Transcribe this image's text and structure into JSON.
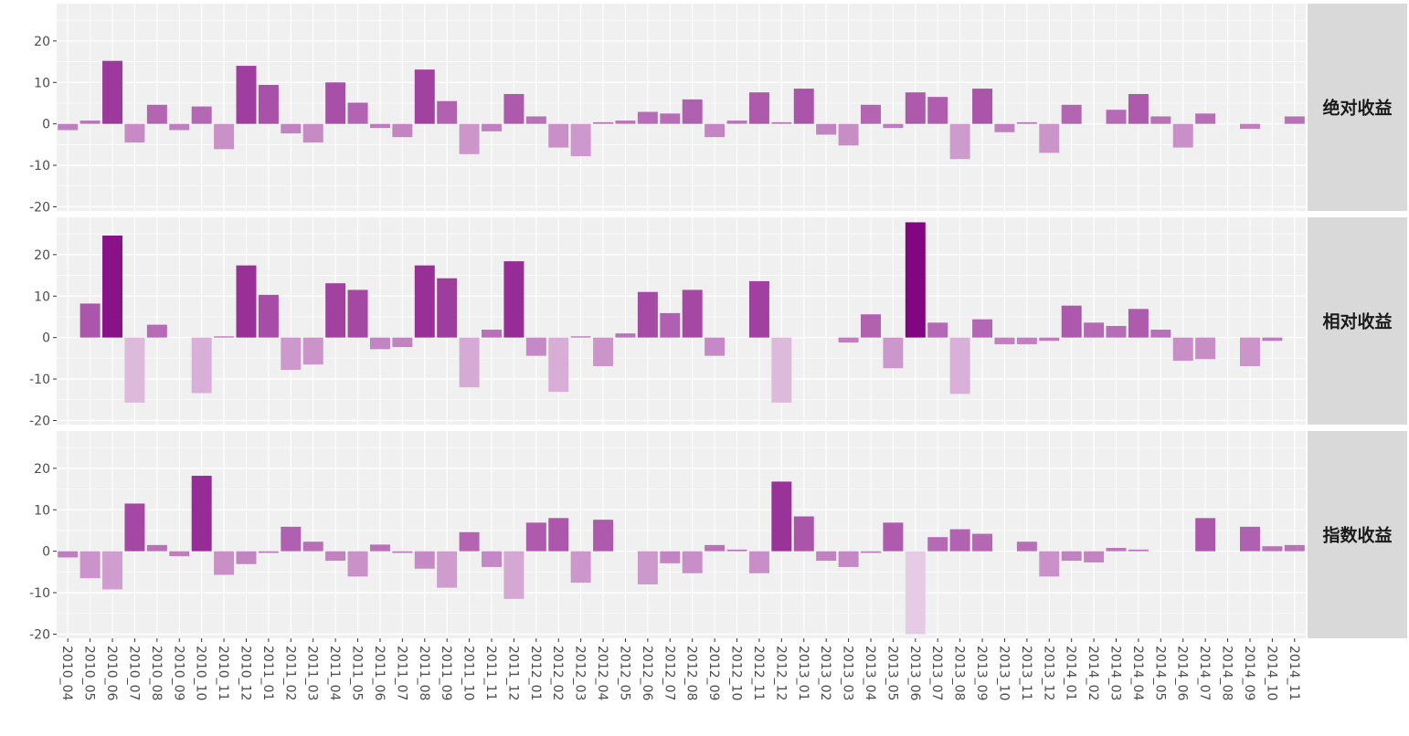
{
  "chart_data": {
    "type": "bar",
    "layout": "faceted-rows",
    "grid": true,
    "legend": "none",
    "colors": {
      "panel_bg": "#f0f0f0",
      "grid": "#ffffff",
      "strip_bg": "#d9d9d9",
      "bar_low": "#e8cfe7",
      "bar_high": "#800080",
      "axis_text": "#4d4d4d"
    },
    "ylim": [
      -21,
      29
    ],
    "yticks": [
      -20,
      -10,
      0,
      10,
      20
    ],
    "categories": [
      "2010_04",
      "2010_05",
      "2010_06",
      "2010_07",
      "2010_08",
      "2010_09",
      "2010_10",
      "2010_11",
      "2010_12",
      "2011_01",
      "2011_02",
      "2011_03",
      "2011_04",
      "2011_05",
      "2011_06",
      "2011_07",
      "2011_08",
      "2011_09",
      "2011_10",
      "2011_11",
      "2011_12",
      "2012_01",
      "2012_02",
      "2012_03",
      "2012_04",
      "2012_05",
      "2012_06",
      "2012_07",
      "2012_08",
      "2012_09",
      "2012_10",
      "2012_11",
      "2012_12",
      "2013_01",
      "2013_02",
      "2013_03",
      "2013_04",
      "2013_05",
      "2013_06",
      "2013_07",
      "2013_08",
      "2013_09",
      "2013_10",
      "2013_11",
      "2013_12",
      "2014_01",
      "2014_02",
      "2014_03",
      "2014_04",
      "2014_05",
      "2014_06",
      "2014_07",
      "2014_08",
      "2014_09",
      "2014_10",
      "2014_11"
    ],
    "series": [
      {
        "name": "绝对收益",
        "values": [
          -1.5,
          0.8,
          15.2,
          -4.5,
          4.6,
          -1.5,
          4.2,
          -6.1,
          14.0,
          9.4,
          -2.3,
          -4.5,
          10.0,
          5.1,
          -1.0,
          -3.2,
          13.1,
          5.5,
          -7.3,
          -1.8,
          7.2,
          1.8,
          -5.7,
          -7.8,
          0.4,
          0.8,
          2.9,
          2.5,
          5.9,
          -3.2,
          0.8,
          7.6,
          0.4,
          8.5,
          -2.6,
          -5.2,
          4.6,
          -1.0,
          7.6,
          6.5,
          -8.5,
          8.5,
          -2.0,
          0.4,
          -7.0,
          4.6,
          0.0,
          3.4,
          7.2,
          1.8,
          -5.7,
          2.5,
          0.0,
          -1.2,
          0.0,
          1.8
        ]
      },
      {
        "name": "相对收益",
        "values": [
          0.0,
          8.2,
          24.6,
          -15.7,
          3.1,
          0.0,
          -13.4,
          0.3,
          17.4,
          10.3,
          -7.8,
          -6.5,
          13.1,
          11.5,
          -2.8,
          -2.3,
          17.4,
          14.3,
          -12.0,
          1.9,
          18.4,
          -4.4,
          -13.1,
          0.3,
          -6.9,
          1.0,
          11.0,
          5.9,
          11.5,
          -4.4,
          0.0,
          13.6,
          -15.7,
          0.0,
          0.0,
          -1.2,
          5.6,
          -7.4,
          27.8,
          3.6,
          -13.6,
          4.4,
          -1.6,
          -1.6,
          -0.8,
          7.7,
          3.6,
          2.8,
          6.9,
          1.9,
          -5.6,
          -5.2,
          0.0,
          -6.9,
          -0.8,
          0.0
        ]
      },
      {
        "name": "指数收益",
        "values": [
          -1.5,
          -6.5,
          -9.2,
          11.5,
          1.5,
          -1.2,
          18.2,
          -5.7,
          -3.1,
          -0.4,
          5.9,
          2.3,
          -2.3,
          -6.1,
          1.6,
          -0.4,
          -4.2,
          -8.8,
          4.6,
          -3.8,
          -11.5,
          6.9,
          8.0,
          -7.6,
          7.6,
          0.0,
          -8.0,
          -2.9,
          -5.3,
          1.5,
          0.4,
          -5.3,
          16.8,
          8.4,
          -2.3,
          -3.8,
          -0.4,
          6.9,
          -20.0,
          3.4,
          5.3,
          4.2,
          0.0,
          2.3,
          -6.1,
          -2.3,
          -2.7,
          0.8,
          0.4,
          0.0,
          0.0,
          8.0,
          0.0,
          5.9,
          1.2,
          1.5
        ]
      }
    ]
  }
}
